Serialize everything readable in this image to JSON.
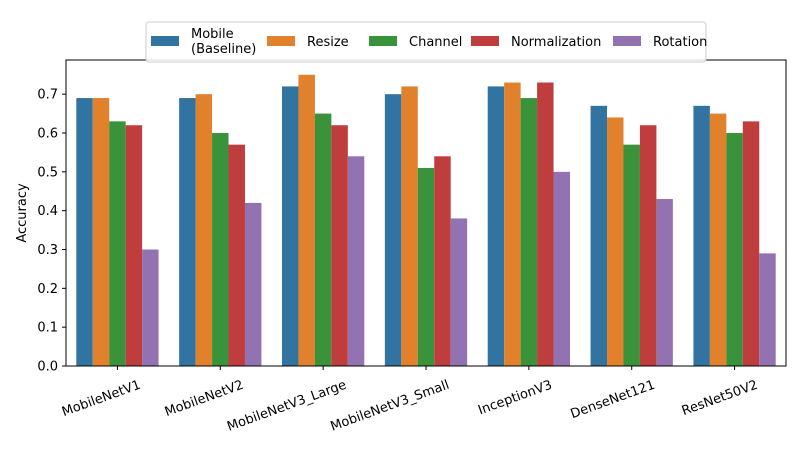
{
  "chart_data": {
    "type": "bar",
    "title": "",
    "xlabel": "",
    "ylabel": "Accuracy",
    "ylim": [
      0,
      0.788
    ],
    "yticks": [
      "0.0",
      "0.1",
      "0.2",
      "0.3",
      "0.4",
      "0.5",
      "0.6",
      "0.7"
    ],
    "categories": [
      "MobileNetV1",
      "MobileNetV2",
      "MobileNetV3_Large",
      "MobileNetV3_Small",
      "InceptionV3",
      "DenseNet121",
      "ResNet50V2"
    ],
    "series": [
      {
        "name": "Mobile\n(Baseline)",
        "color": "#3274a1",
        "values": [
          0.69,
          0.69,
          0.72,
          0.7,
          0.72,
          0.67,
          0.67
        ]
      },
      {
        "name": "Resize",
        "color": "#e1812c",
        "values": [
          0.69,
          0.7,
          0.75,
          0.72,
          0.73,
          0.64,
          0.65
        ]
      },
      {
        "name": "Channel",
        "color": "#3a923a",
        "values": [
          0.63,
          0.6,
          0.65,
          0.51,
          0.69,
          0.57,
          0.6
        ]
      },
      {
        "name": "Normalization",
        "color": "#c03d3e",
        "values": [
          0.62,
          0.57,
          0.62,
          0.54,
          0.73,
          0.62,
          0.63
        ]
      },
      {
        "name": "Rotation",
        "color": "#9372b2",
        "values": [
          0.3,
          0.42,
          0.54,
          0.38,
          0.5,
          0.43,
          0.29
        ]
      }
    ],
    "legend_position": "top-center",
    "grid": false
  }
}
